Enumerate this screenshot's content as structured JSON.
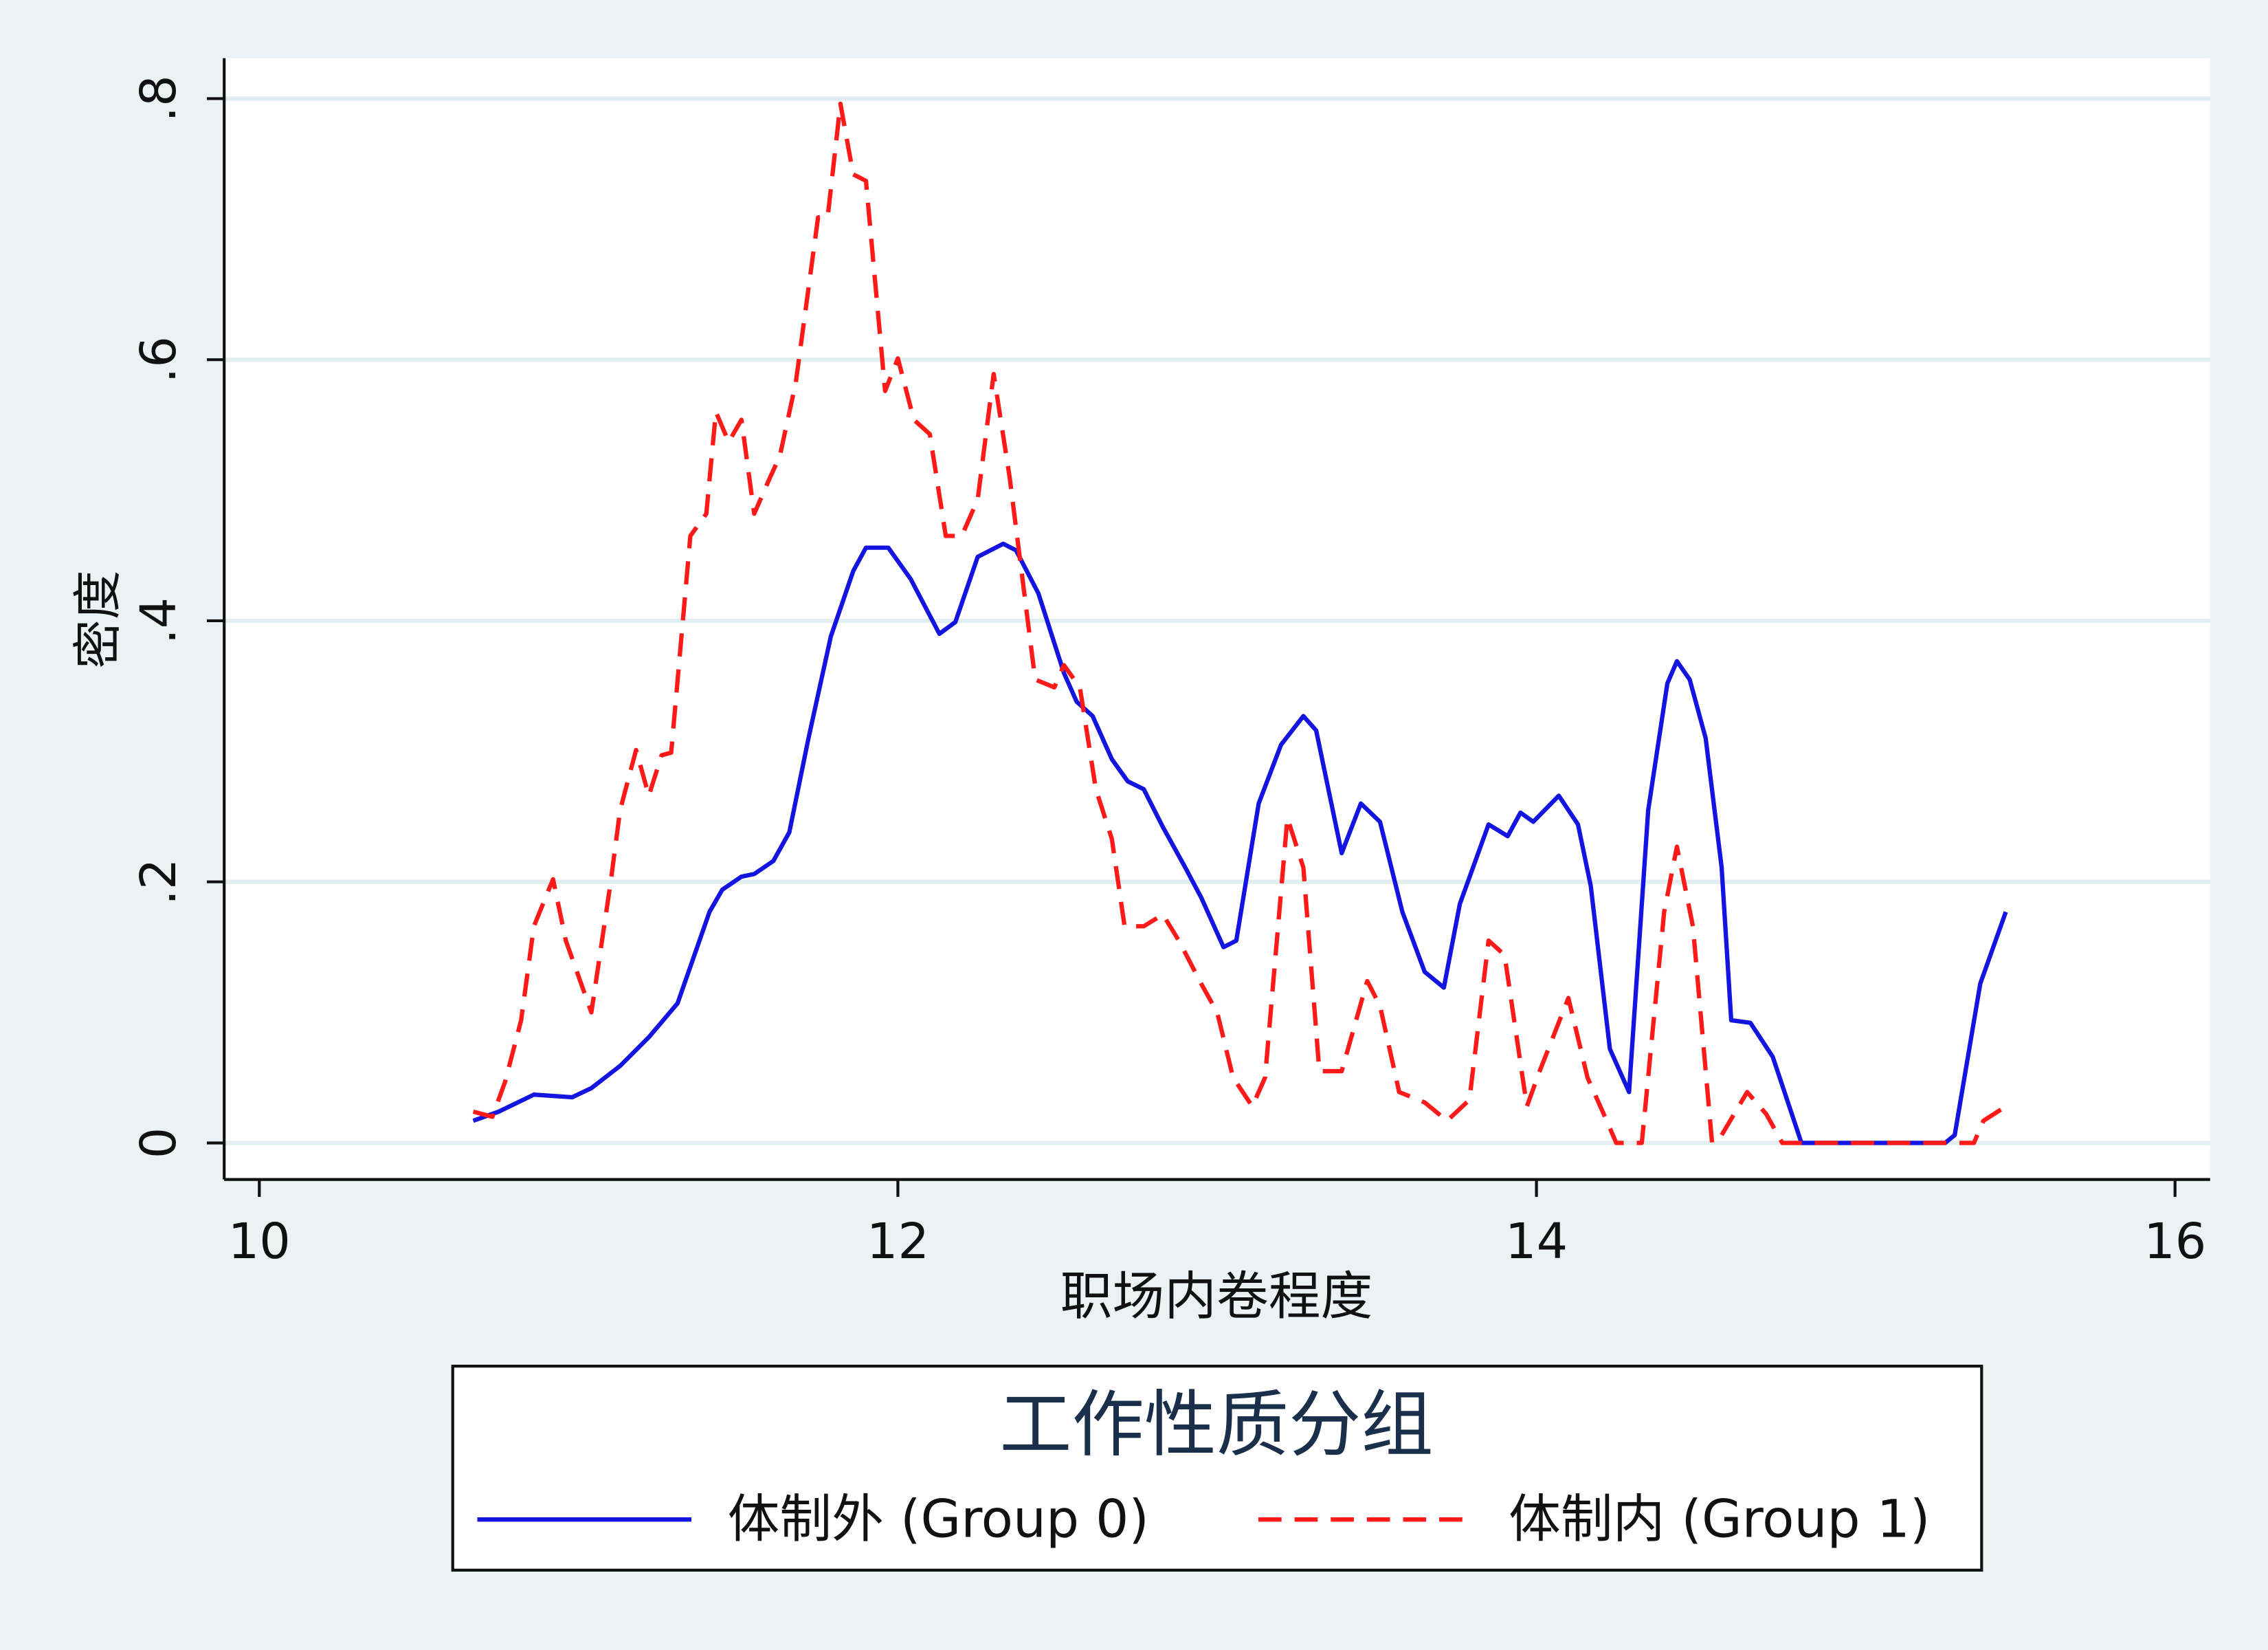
{
  "chart_data": {
    "type": "line",
    "x_label": "职场内卷程度",
    "y_label": "密度",
    "legend_title": "工作性质分组",
    "xlim": [
      9.89,
      16.11
    ],
    "ylim": [
      -0.028,
      0.831
    ],
    "xticks": [
      10,
      12,
      14,
      16
    ],
    "yticks": [
      0,
      {
        "value": 0.2,
        "label": ".2"
      },
      {
        "value": 0.4,
        "label": ".4"
      },
      {
        "value": 0.6,
        "label": ".6"
      },
      {
        "value": 0.8,
        "label": ".8"
      }
    ],
    "grid": true,
    "series": [
      {
        "name": "体制外 (Group 0)",
        "color": "#1414e0",
        "dash": false,
        "x": [
          10.67,
          10.75,
          10.86,
          10.98,
          11.04,
          11.13,
          11.22,
          11.31,
          11.41,
          11.45,
          11.51,
          11.55,
          11.61,
          11.66,
          11.72,
          11.79,
          11.86,
          11.9,
          11.97,
          12.04,
          12.13,
          12.18,
          12.25,
          12.33,
          12.37,
          12.44,
          12.52,
          12.56,
          12.61,
          12.67,
          12.72,
          12.77,
          12.83,
          12.9,
          12.95,
          13.02,
          13.06,
          13.13,
          13.2,
          13.27,
          13.31,
          13.39,
          13.45,
          13.51,
          13.58,
          13.65,
          13.71,
          13.76,
          13.85,
          13.91,
          13.95,
          13.99,
          14.07,
          14.13,
          14.17,
          14.23,
          14.29,
          14.35,
          14.41,
          14.44,
          14.48,
          14.53,
          14.58,
          14.61,
          14.67,
          14.74,
          14.83,
          15.28,
          15.31,
          15.39,
          15.47
        ],
        "values": [
          0.017,
          0.024,
          0.037,
          0.035,
          0.042,
          0.059,
          0.081,
          0.107,
          0.177,
          0.194,
          0.204,
          0.206,
          0.216,
          0.238,
          0.31,
          0.388,
          0.438,
          0.456,
          0.456,
          0.432,
          0.39,
          0.399,
          0.449,
          0.459,
          0.454,
          0.421,
          0.36,
          0.338,
          0.327,
          0.294,
          0.277,
          0.271,
          0.242,
          0.211,
          0.188,
          0.15,
          0.155,
          0.26,
          0.305,
          0.327,
          0.316,
          0.222,
          0.26,
          0.246,
          0.177,
          0.131,
          0.119,
          0.183,
          0.244,
          0.235,
          0.253,
          0.246,
          0.266,
          0.244,
          0.197,
          0.072,
          0.039,
          0.255,
          0.352,
          0.369,
          0.355,
          0.31,
          0.211,
          0.094,
          0.092,
          0.066,
          0,
          0,
          0.006,
          0.122,
          0.177
        ]
      },
      {
        "name": "体制内 (Group 1)",
        "color": "#ff1a1a",
        "dash": true,
        "x": [
          10.67,
          10.73,
          10.77,
          10.82,
          10.86,
          10.92,
          10.96,
          11.04,
          11.1,
          11.13,
          11.18,
          11.22,
          11.26,
          11.29,
          11.35,
          11.4,
          11.43,
          11.47,
          11.51,
          11.55,
          11.6,
          11.63,
          11.68,
          11.75,
          11.78,
          11.82,
          11.86,
          11.9,
          11.96,
          12.0,
          12.05,
          12.1,
          12.15,
          12.2,
          12.25,
          12.3,
          12.35,
          12.43,
          12.49,
          12.52,
          12.57,
          12.62,
          12.67,
          12.71,
          12.77,
          12.83,
          12.88,
          12.95,
          13.0,
          13.05,
          13.11,
          13.15,
          13.22,
          13.27,
          13.32,
          13.39,
          13.47,
          13.51,
          13.57,
          13.65,
          13.72,
          13.79,
          13.85,
          13.9,
          13.97,
          14.01,
          14.1,
          14.16,
          14.22,
          14.25,
          14.33,
          14.4,
          14.44,
          14.49,
          14.55,
          14.58,
          14.66,
          14.72,
          14.77,
          15.37,
          15.4,
          15.47
        ],
        "values": [
          0.024,
          0.02,
          0.047,
          0.094,
          0.166,
          0.202,
          0.155,
          0.1,
          0.199,
          0.255,
          0.301,
          0.266,
          0.297,
          0.299,
          0.465,
          0.482,
          0.56,
          0.537,
          0.554,
          0.482,
          0.51,
          0.526,
          0.582,
          0.709,
          0.709,
          0.796,
          0.742,
          0.737,
          0.576,
          0.601,
          0.554,
          0.543,
          0.465,
          0.465,
          0.493,
          0.589,
          0.51,
          0.355,
          0.349,
          0.366,
          0.349,
          0.271,
          0.233,
          0.166,
          0.166,
          0.175,
          0.155,
          0.122,
          0.1,
          0.05,
          0.028,
          0.05,
          0.249,
          0.211,
          0.055,
          0.055,
          0.124,
          0.105,
          0.039,
          0.031,
          0.017,
          0.033,
          0.155,
          0.144,
          0.028,
          0.055,
          0.111,
          0.05,
          0.017,
          0,
          0,
          0.177,
          0.227,
          0.166,
          0,
          0.006,
          0.039,
          0.022,
          0,
          0,
          0.017,
          0.028
        ]
      }
    ]
  }
}
